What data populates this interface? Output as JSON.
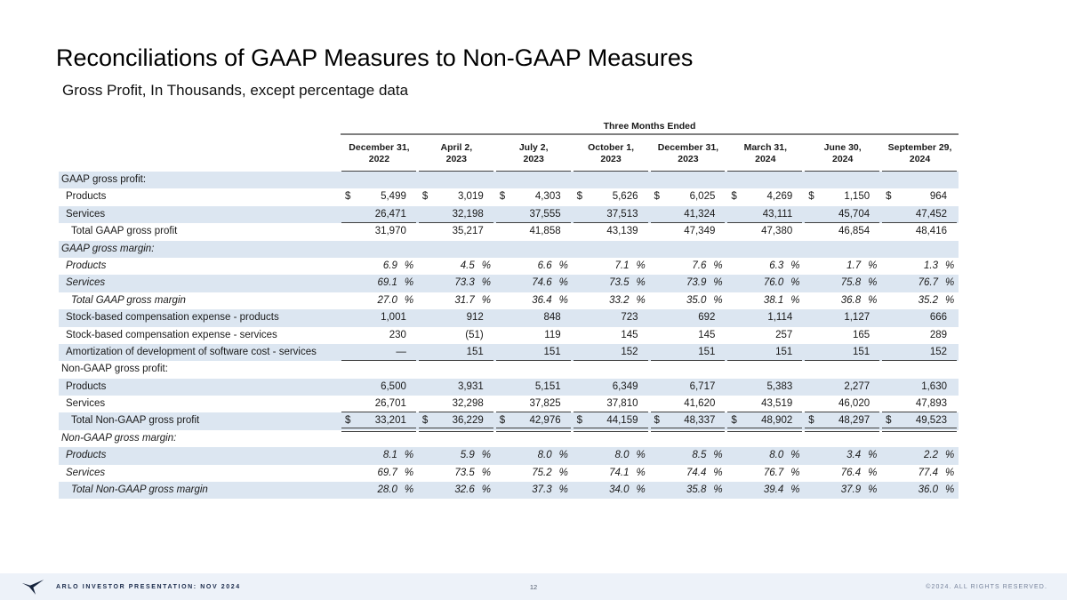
{
  "slide": {
    "title": "Reconciliations of GAAP Measures to Non-GAAP Measures",
    "subtitle": "Gross Profit, In Thousands, except percentage data"
  },
  "table": {
    "group_header": "Three Months Ended",
    "currency_symbol": "$",
    "percent_symbol": "%",
    "columns": [
      {
        "line1": "December 31,",
        "line2": "2022"
      },
      {
        "line1": "April 2,",
        "line2": "2023"
      },
      {
        "line1": "July 2,",
        "line2": "2023"
      },
      {
        "line1": "October 1,",
        "line2": "2023"
      },
      {
        "line1": "December 31,",
        "line2": "2023"
      },
      {
        "line1": "March 31,",
        "line2": "2024"
      },
      {
        "line1": "June 30,",
        "line2": "2024"
      },
      {
        "line1": "September 29,",
        "line2": "2024"
      }
    ],
    "rows": [
      {
        "label": "GAAP gross profit:",
        "type": "section",
        "italic": false,
        "indent": 0,
        "shade": true
      },
      {
        "label": "Products",
        "type": "money",
        "dollar": true,
        "italic": false,
        "indent": 1,
        "shade": false,
        "rule": "none",
        "values": [
          "5,499",
          "3,019",
          "4,303",
          "5,626",
          "6,025",
          "4,269",
          "1,150",
          "964"
        ]
      },
      {
        "label": "Services",
        "type": "money",
        "dollar": false,
        "italic": false,
        "indent": 1,
        "shade": true,
        "rule": "single",
        "values": [
          "26,471",
          "32,198",
          "37,555",
          "37,513",
          "41,324",
          "43,111",
          "45,704",
          "47,452"
        ]
      },
      {
        "label": "Total GAAP gross profit",
        "type": "money",
        "dollar": false,
        "italic": false,
        "indent": 2,
        "shade": false,
        "rule": "none",
        "values": [
          "31,970",
          "35,217",
          "41,858",
          "43,139",
          "47,349",
          "47,380",
          "46,854",
          "48,416"
        ]
      },
      {
        "label": "GAAP gross margin:",
        "type": "section",
        "italic": true,
        "indent": 0,
        "shade": true
      },
      {
        "label": "Products",
        "type": "percent",
        "italic": true,
        "indent": 1,
        "shade": false,
        "rule": "none",
        "values": [
          "6.9",
          "4.5",
          "6.6",
          "7.1",
          "7.6",
          "6.3",
          "1.7",
          "1.3"
        ]
      },
      {
        "label": "Services",
        "type": "percent",
        "italic": true,
        "indent": 1,
        "shade": true,
        "rule": "none",
        "values": [
          "69.1",
          "73.3",
          "74.6",
          "73.5",
          "73.9",
          "76.0",
          "75.8",
          "76.7"
        ]
      },
      {
        "label": "Total GAAP gross margin",
        "type": "percent",
        "italic": true,
        "indent": 2,
        "shade": false,
        "rule": "none",
        "values": [
          "27.0",
          "31.7",
          "36.4",
          "33.2",
          "35.0",
          "38.1",
          "36.8",
          "35.2"
        ]
      },
      {
        "label": "Stock-based compensation expense - products",
        "type": "money",
        "dollar": false,
        "italic": false,
        "indent": 1,
        "shade": true,
        "rule": "none",
        "values": [
          "1,001",
          "912",
          "848",
          "723",
          "692",
          "1,114",
          "1,127",
          "666"
        ]
      },
      {
        "label": "Stock-based compensation expense - services",
        "type": "money",
        "dollar": false,
        "italic": false,
        "indent": 1,
        "shade": false,
        "rule": "none",
        "values": [
          "230",
          "(51)",
          "119",
          "145",
          "145",
          "257",
          "165",
          "289"
        ]
      },
      {
        "label": "Amortization of development of software cost - services",
        "type": "money",
        "dollar": false,
        "italic": false,
        "indent": 1,
        "shade": true,
        "rule": "single",
        "values": [
          "—",
          "151",
          "151",
          "152",
          "151",
          "151",
          "151",
          "152"
        ]
      },
      {
        "label": "Non-GAAP gross profit:",
        "type": "section",
        "italic": false,
        "indent": 0,
        "shade": false
      },
      {
        "label": "Products",
        "type": "money",
        "dollar": false,
        "italic": false,
        "indent": 1,
        "shade": true,
        "rule": "none",
        "values": [
          "6,500",
          "3,931",
          "5,151",
          "6,349",
          "6,717",
          "5,383",
          "2,277",
          "1,630"
        ]
      },
      {
        "label": "Services",
        "type": "money",
        "dollar": false,
        "italic": false,
        "indent": 1,
        "shade": false,
        "rule": "single",
        "values": [
          "26,701",
          "32,298",
          "37,825",
          "37,810",
          "41,620",
          "43,519",
          "46,020",
          "47,893"
        ]
      },
      {
        "label": "Total Non-GAAP gross profit",
        "type": "money",
        "dollar": true,
        "italic": false,
        "indent": 2,
        "shade": true,
        "rule": "double",
        "values": [
          "33,201",
          "36,229",
          "42,976",
          "44,159",
          "48,337",
          "48,902",
          "48,297",
          "49,523"
        ]
      },
      {
        "label": "Non-GAAP gross margin:",
        "type": "section",
        "italic": true,
        "indent": 0,
        "shade": false
      },
      {
        "label": "Products",
        "type": "percent",
        "italic": true,
        "indent": 1,
        "shade": true,
        "rule": "none",
        "values": [
          "8.1",
          "5.9",
          "8.0",
          "8.0",
          "8.5",
          "8.0",
          "3.4",
          "2.2"
        ]
      },
      {
        "label": "Services",
        "type": "percent",
        "italic": true,
        "indent": 1,
        "shade": false,
        "rule": "none",
        "values": [
          "69.7",
          "73.5",
          "75.2",
          "74.1",
          "74.4",
          "76.7",
          "76.4",
          "77.4"
        ]
      },
      {
        "label": "Total Non-GAAP gross margin",
        "type": "percent",
        "italic": true,
        "indent": 2,
        "shade": true,
        "rule": "none",
        "values": [
          "28.0",
          "32.6",
          "37.3",
          "34.0",
          "35.8",
          "39.4",
          "37.9",
          "36.0"
        ]
      }
    ]
  },
  "footer": {
    "left_text": "ARLO INVESTOR PRESENTATION: NOV 2024",
    "page_number": "12",
    "right_text": "©2024.  ALL RIGHTS RESERVED.",
    "logo": "arlo-bird-logo"
  },
  "colors": {
    "stripe": "#dce6f1",
    "footer_bg": "#edf2f9",
    "accent_dark": "#1b2b4b"
  }
}
